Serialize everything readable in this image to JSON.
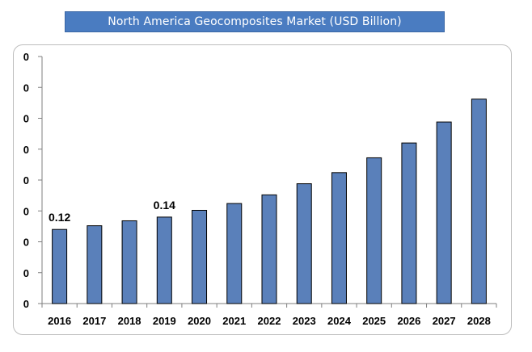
{
  "title": "North America Geocomposites Market (USD Billion)",
  "colors": {
    "bar_fill": "#5a80ba",
    "bar_stroke": "#000000",
    "title_bg": "#4a7cc1",
    "title_text": "#ffffff"
  },
  "chart_data": {
    "type": "bar",
    "title": "North America Geocomposites Market (USD Billion)",
    "xlabel": "",
    "ylabel": "",
    "categories": [
      "2016",
      "2017",
      "2018",
      "2019",
      "2020",
      "2021",
      "2022",
      "2023",
      "2024",
      "2025",
      "2026",
      "2027",
      "2028"
    ],
    "values": [
      0.12,
      0.126,
      0.134,
      0.14,
      0.151,
      0.162,
      0.176,
      0.194,
      0.212,
      0.236,
      0.26,
      0.294,
      0.331
    ],
    "y_tick_labels": [
      "0",
      "0",
      "0",
      "0",
      "0",
      "0",
      "0",
      "0",
      "0"
    ],
    "data_labels": [
      {
        "category": "2016",
        "text": "0.12"
      },
      {
        "category": "2019",
        "text": "0.14"
      }
    ],
    "ylim": [
      0,
      0.4
    ],
    "grid": false,
    "legend": "none"
  }
}
